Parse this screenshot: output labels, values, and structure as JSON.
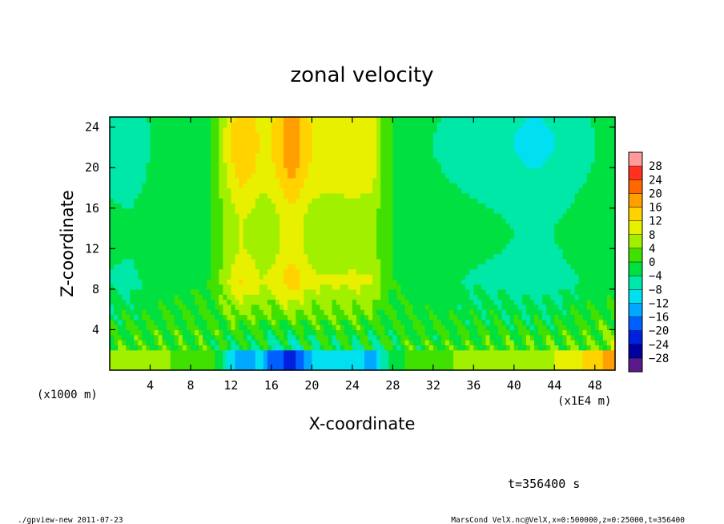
{
  "chart_data": {
    "type": "heatmap",
    "title": "zonal velocity",
    "xlabel": "X-coordinate",
    "ylabel": "Z-coordinate",
    "x_unit": "(x1E4 m)",
    "y_unit": "(x1000 m)",
    "x_range": [
      0,
      50
    ],
    "y_range": [
      0,
      25
    ],
    "x_ticks": [
      4,
      8,
      12,
      16,
      20,
      24,
      28,
      32,
      36,
      40,
      44,
      48
    ],
    "y_ticks": [
      4,
      8,
      12,
      16,
      20,
      24
    ],
    "colorbar": {
      "levels": [
        -28,
        -24,
        -20,
        -16,
        -12,
        -8,
        -4,
        0,
        4,
        8,
        12,
        16,
        20,
        24,
        28
      ],
      "labels": [
        "28",
        "24",
        "20",
        "16",
        "12",
        "8",
        "4",
        "0",
        "−4",
        "−8",
        "−12",
        "−16",
        "−20",
        "−24",
        "−28"
      ],
      "colors": [
        "#5a1a8c",
        "#0000a0",
        "#0020e0",
        "#0060ff",
        "#00a8ff",
        "#00e0f0",
        "#00e8a8",
        "#00e040",
        "#40e000",
        "#a0f000",
        "#e8f000",
        "#ffd200",
        "#ffa000",
        "#ff6800",
        "#ff3020",
        "#ff9a9a"
      ]
    },
    "field_profile": {
      "x": [
        0,
        2,
        4,
        6,
        8,
        10,
        12,
        13,
        14,
        15,
        16,
        17,
        18,
        19,
        20,
        22,
        24,
        26,
        27,
        28,
        30,
        32,
        34,
        36,
        38,
        40,
        42,
        44,
        46,
        48,
        50
      ],
      "upper_velocity": [
        -6,
        -7,
        -4,
        -2,
        -1,
        0,
        12,
        16,
        14,
        11,
        12,
        16,
        20,
        16,
        12,
        11,
        12,
        11,
        4,
        0,
        -2,
        -4,
        -5,
        -6,
        -7,
        -8,
        -9,
        -8,
        -6,
        -4,
        -3
      ],
      "surface_velocity": [
        4,
        6,
        5,
        4,
        3,
        2,
        -10,
        -16,
        -14,
        -10,
        -18,
        -20,
        -22,
        -18,
        -12,
        -8,
        -10,
        -14,
        -8,
        -2,
        2,
        3,
        4,
        5,
        6,
        6,
        7,
        8,
        10,
        14,
        18
      ]
    }
  },
  "annotations": {
    "time": "t=356400 s",
    "footer_left": "./gpview-new   2011-07-23",
    "footer_right": "MarsCond_VelX.nc@VelX,x=0:500000,z=0:25000,t=356400"
  }
}
